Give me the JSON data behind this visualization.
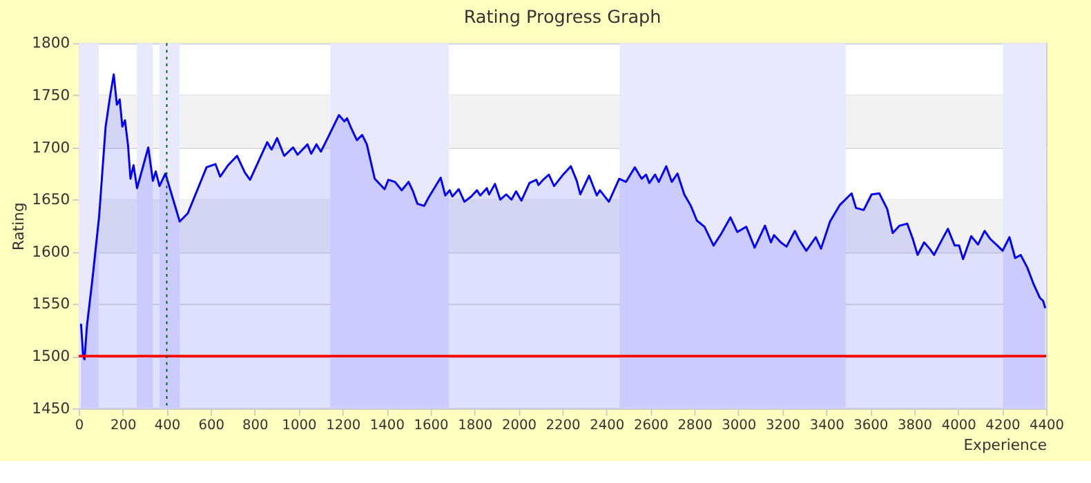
{
  "chart_data": {
    "type": "area",
    "title": "Rating Progress Graph",
    "xlabel": "Experience",
    "ylabel": "Rating",
    "xlim": [
      0,
      4400
    ],
    "xticks": [
      0,
      200,
      400,
      600,
      800,
      1000,
      1200,
      1400,
      1600,
      1800,
      2000,
      2200,
      2400,
      2600,
      2800,
      3000,
      3200,
      3400,
      3600,
      3800,
      4000,
      4200,
      4400
    ],
    "ylim": [
      1450,
      1800
    ],
    "yticks": [
      1450,
      1500,
      1550,
      1600,
      1650,
      1700,
      1750,
      1800
    ],
    "grid": "y",
    "series": [
      {
        "color": "#0000ff",
        "x": [
          10,
          20,
          26,
          37,
          61,
          92,
          122,
          143,
          159,
          173,
          186,
          198,
          210,
          224,
          235,
          249,
          265,
          316,
          337,
          350,
          367,
          394,
          459,
          496,
          581,
          622,
          643,
          679,
          720,
          755,
          779,
          857,
          877,
          902,
          934,
          975,
          995,
          1040,
          1057,
          1081,
          1101,
          1132,
          1183,
          1208,
          1220,
          1240,
          1265,
          1289,
          1310,
          1346,
          1391,
          1408,
          1438,
          1469,
          1500,
          1520,
          1540,
          1571,
          1591,
          1646,
          1667,
          1687,
          1699,
          1728,
          1754,
          1785,
          1811,
          1826,
          1856,
          1866,
          1893,
          1917,
          1944,
          1968,
          1989,
          2013,
          2050,
          2081,
          2091,
          2112,
          2138,
          2162,
          2203,
          2238,
          2265,
          2281,
          2321,
          2356,
          2370,
          2411,
          2458,
          2489,
          2529,
          2560,
          2580,
          2595,
          2621,
          2638,
          2672,
          2697,
          2723,
          2754,
          2784,
          2811,
          2846,
          2887,
          2921,
          2964,
          2995,
          3036,
          3074,
          3121,
          3148,
          3162,
          3193,
          3219,
          3257,
          3278,
          3309,
          3352,
          3376,
          3417,
          3462,
          3515,
          3535,
          3570,
          3606,
          3641,
          3677,
          3702,
          3733,
          3768,
          3794,
          3815,
          3845,
          3870,
          3890,
          3917,
          3953,
          3984,
          4004,
          4022,
          4059,
          4090,
          4120,
          4147,
          4178,
          4202,
          4233,
          4259,
          4284,
          4314,
          4341,
          4371,
          4386,
          4396
        ],
        "values": [
          1531,
          1500,
          1497,
          1529,
          1572,
          1633,
          1720,
          1750,
          1770,
          1741,
          1746,
          1720,
          1726,
          1702,
          1670,
          1683,
          1661,
          1700,
          1668,
          1677,
          1663,
          1675,
          1629,
          1637,
          1681,
          1684,
          1672,
          1683,
          1692,
          1676,
          1669,
          1705,
          1698,
          1709,
          1692,
          1700,
          1693,
          1703,
          1694,
          1703,
          1696,
          1709,
          1731,
          1725,
          1728,
          1718,
          1707,
          1712,
          1703,
          1670,
          1660,
          1669,
          1667,
          1659,
          1667,
          1658,
          1646,
          1644,
          1652,
          1671,
          1654,
          1659,
          1653,
          1660,
          1648,
          1653,
          1659,
          1654,
          1661,
          1655,
          1665,
          1650,
          1655,
          1650,
          1658,
          1649,
          1666,
          1669,
          1664,
          1669,
          1674,
          1663,
          1674,
          1682,
          1668,
          1655,
          1673,
          1654,
          1659,
          1648,
          1670,
          1667,
          1681,
          1670,
          1674,
          1666,
          1674,
          1667,
          1682,
          1667,
          1675,
          1655,
          1644,
          1630,
          1624,
          1606,
          1617,
          1633,
          1619,
          1624,
          1604,
          1625,
          1609,
          1616,
          1609,
          1605,
          1620,
          1611,
          1601,
          1614,
          1603,
          1629,
          1645,
          1656,
          1642,
          1640,
          1655,
          1656,
          1641,
          1618,
          1625,
          1627,
          1612,
          1597,
          1609,
          1603,
          1597,
          1608,
          1622,
          1606,
          1606,
          1593,
          1615,
          1607,
          1620,
          1612,
          1606,
          1601,
          1614,
          1594,
          1597,
          1585,
          1570,
          1556,
          1553,
          1546
        ]
      }
    ],
    "bands": [
      {
        "axis": "y",
        "from": 1700,
        "to": 1750,
        "color": "#f2f2f2"
      },
      {
        "axis": "y",
        "from": 1600,
        "to": 1650,
        "color": "#f2f2f2"
      },
      {
        "axis": "x",
        "from": 0,
        "to": 90,
        "color": "#e8e8ff"
      },
      {
        "axis": "x",
        "from": 264,
        "to": 337,
        "color": "#e8e8ff"
      },
      {
        "axis": "x",
        "from": 367,
        "to": 459,
        "color": "#e8e8ff"
      },
      {
        "axis": "x",
        "from": 1144,
        "to": 1683,
        "color": "#e8e8ff"
      },
      {
        "axis": "x",
        "from": 2460,
        "to": 3488,
        "color": "#e8e8ff"
      },
      {
        "axis": "x",
        "from": 4204,
        "to": 4400,
        "color": "#e8e8ff"
      }
    ],
    "ref_lines": [
      {
        "axis": "y",
        "value": 1500,
        "color": "#ff0000",
        "line_style": "solid"
      },
      {
        "axis": "x",
        "value": 400,
        "color": "#006400",
        "line_style": "dotted"
      }
    ]
  }
}
